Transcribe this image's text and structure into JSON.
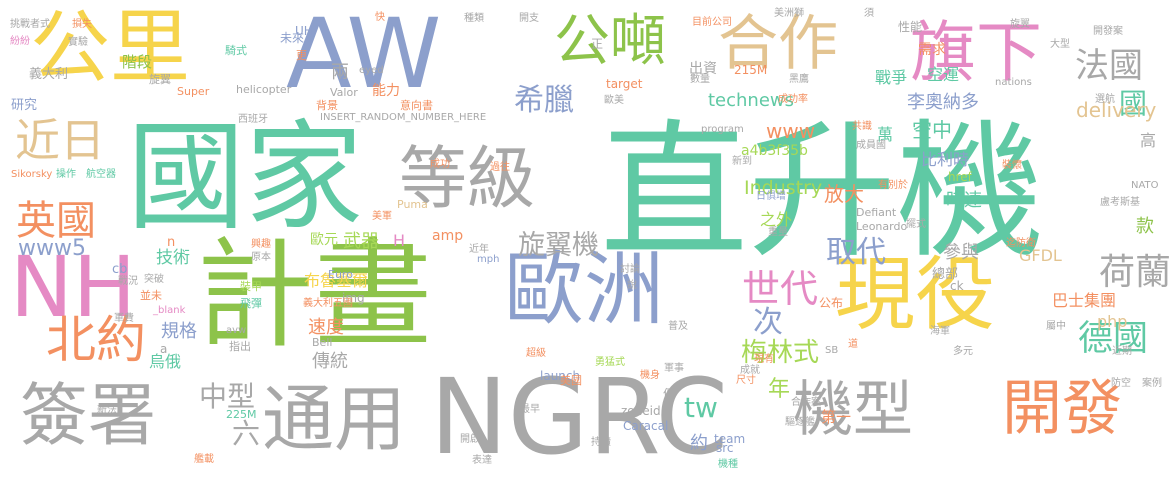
{
  "palette": {
    "gray": "#a8a8a8",
    "green": "#8dc34a",
    "yellow": "#f6d44b",
    "blue": "#8c9fcc",
    "teal": "#5fc9a4",
    "orange": "#f39061",
    "pink": "#e58ac4",
    "tan": "#e3c491",
    "lime": "#a6d856"
  },
  "words": [
    {
      "id": "w1",
      "text": "直升機",
      "color": "teal",
      "v": 0
    },
    {
      "id": "w2",
      "text": "國家",
      "color": "teal",
      "v": 0
    },
    {
      "id": "w3",
      "text": "計畫",
      "color": "green",
      "v": 0
    },
    {
      "id": "w4",
      "text": "NGRC",
      "color": "gray",
      "v": 0
    },
    {
      "id": "w5",
      "text": "AW",
      "color": "blue",
      "v": 0
    },
    {
      "id": "w6",
      "text": "公里",
      "color": "yellow",
      "v": 0
    },
    {
      "id": "w7",
      "text": "NH",
      "color": "pink",
      "v": 0
    },
    {
      "id": "w8",
      "text": "歐洲",
      "color": "blue",
      "v": 0
    },
    {
      "id": "w9",
      "text": "現役",
      "color": "yellow",
      "v": 0
    },
    {
      "id": "w10",
      "text": "等級",
      "color": "gray",
      "v": 0
    },
    {
      "id": "w11",
      "text": "通用",
      "color": "gray",
      "v": 0
    },
    {
      "id": "w12",
      "text": "簽署",
      "color": "gray",
      "v": 0
    },
    {
      "id": "w13",
      "text": "合作",
      "color": "tan",
      "v": 0
    },
    {
      "id": "w14",
      "text": "旗下",
      "color": "pink",
      "v": 0
    },
    {
      "id": "w15",
      "text": "公噸",
      "color": "green",
      "v": 0
    },
    {
      "id": "w16",
      "text": "機型",
      "color": "gray",
      "v": 0
    },
    {
      "id": "w17",
      "text": "開發",
      "color": "orange",
      "v": 0
    },
    {
      "id": "w18",
      "text": "北約",
      "color": "orange",
      "v": 0
    },
    {
      "id": "w19",
      "text": "英國",
      "color": "orange",
      "v": 0
    },
    {
      "id": "w20",
      "text": "近日",
      "color": "tan",
      "v": 0
    },
    {
      "id": "w21",
      "text": "世代",
      "color": "pink",
      "v": 0
    },
    {
      "id": "w22",
      "text": "荷蘭",
      "color": "gray",
      "v": 0
    },
    {
      "id": "w23",
      "text": "法國",
      "color": "gray",
      "v": 0
    },
    {
      "id": "w24",
      "text": "德國",
      "color": "teal",
      "v": 0
    },
    {
      "id": "w25",
      "text": "取代",
      "color": "blue",
      "v": 0
    },
    {
      "id": "w26",
      "text": "希臘",
      "color": "blue",
      "v": 0
    },
    {
      "id": "w27",
      "text": "旋翼機",
      "color": "gray",
      "v": 0
    },
    {
      "id": "w28",
      "text": "梅林式",
      "color": "lime",
      "v": 0
    },
    {
      "id": "w29",
      "text": "中型",
      "color": "gray",
      "v": 0
    },
    {
      "id": "w30",
      "text": "六",
      "color": "gray",
      "v": 0
    },
    {
      "id": "w31",
      "text": "次",
      "color": "blue",
      "v": 0
    },
    {
      "id": "w32",
      "text": "年",
      "color": "lime",
      "v": 0
    },
    {
      "id": "w33",
      "text": "www5",
      "color": "blue",
      "v": 0
    },
    {
      "id": "w34",
      "text": "tw",
      "color": "teal",
      "v": 0
    },
    {
      "id": "w35",
      "text": "國",
      "color": "teal",
      "v": 0
    },
    {
      "id": "w36",
      "text": "delivery",
      "color": "tan",
      "v": 0
    },
    {
      "id": "w37",
      "text": "www",
      "color": "orange",
      "v": 0
    },
    {
      "id": "w38",
      "text": "Industry",
      "color": "lime",
      "v": 0
    },
    {
      "id": "w39",
      "text": "technews",
      "color": "teal",
      "v": 0
    },
    {
      "id": "w40",
      "text": "李奧納多",
      "color": "blue",
      "v": 0
    },
    {
      "id": "w41",
      "text": "空中",
      "color": "teal",
      "v": 0
    },
    {
      "id": "w42",
      "text": "戰爭",
      "color": "teal",
      "v": 0
    },
    {
      "id": "w43",
      "text": "空運",
      "color": "teal",
      "v": 0
    },
    {
      "id": "w44",
      "text": "放大",
      "color": "orange",
      "v": 0
    },
    {
      "id": "w45",
      "text": "比利時",
      "color": "blue",
      "v": 0
    },
    {
      "id": "w46",
      "text": "時速",
      "color": "teal",
      "v": 0
    },
    {
      "id": "w47",
      "text": "參與",
      "color": "gray",
      "v": 0
    },
    {
      "id": "w48",
      "text": "布魯塞爾",
      "color": "yellow",
      "v": 0
    },
    {
      "id": "w49",
      "text": "武器",
      "color": "lime",
      "v": 0
    },
    {
      "id": "w50",
      "text": "技術",
      "color": "teal",
      "v": 0
    },
    {
      "id": "w51",
      "text": "規格",
      "color": "blue",
      "v": 0
    },
    {
      "id": "w52",
      "text": "速度",
      "color": "orange",
      "v": 0
    },
    {
      "id": "w53",
      "text": "傳統",
      "color": "gray",
      "v": 0
    },
    {
      "id": "w54",
      "text": "巴士集團",
      "color": "orange",
      "v": 0
    },
    {
      "id": "w55",
      "text": "之外",
      "color": "lime",
      "v": 0
    },
    {
      "id": "w56",
      "text": "a4b3f35b",
      "color": "lime",
      "v": 0
    },
    {
      "id": "w57",
      "text": "GFDL",
      "color": "tan",
      "v": 0
    },
    {
      "id": "w58",
      "text": "php",
      "color": "tan",
      "v": 0
    },
    {
      "id": "w59",
      "text": "出資",
      "color": "gray",
      "v": 0
    },
    {
      "id": "w60",
      "text": "需求",
      "color": "orange",
      "v": 0
    },
    {
      "id": "w61",
      "text": "性能",
      "color": "gray",
      "v": 0
    },
    {
      "id": "w62",
      "text": "歐元",
      "color": "lime",
      "v": 0
    },
    {
      "id": "w63",
      "text": "H",
      "color": "pink",
      "v": 0
    },
    {
      "id": "w64",
      "text": "amp",
      "color": "orange",
      "v": 0
    },
    {
      "id": "w65",
      "text": "能力",
      "color": "orange",
      "v": 0
    },
    {
      "id": "w66",
      "text": "義大利",
      "color": "gray",
      "v": 0
    },
    {
      "id": "w67",
      "text": "研究",
      "color": "blue",
      "v": 0
    },
    {
      "id": "w68",
      "text": "階段",
      "color": "green",
      "v": 0
    },
    {
      "id": "w69",
      "text": "兩",
      "color": "gray",
      "v": 0
    },
    {
      "id": "w70",
      "text": "烏俄",
      "color": "teal",
      "v": 0
    },
    {
      "id": "w71",
      "text": "第一",
      "color": "orange",
      "v": 0
    },
    {
      "id": "w72",
      "text": "約",
      "color": "blue",
      "v": 0
    },
    {
      "id": "w73",
      "text": "萬",
      "color": "teal",
      "v": 0
    },
    {
      "id": "w74",
      "text": "總部",
      "color": "gray",
      "v": 0
    },
    {
      "id": "w75",
      "text": "款",
      "color": "green",
      "v": 0
    },
    {
      "id": "w76",
      "text": "高",
      "color": "gray",
      "v": 0
    },
    {
      "id": "w77",
      "text": "公布",
      "color": "orange",
      "v": 0
    },
    {
      "id": "w78",
      "text": "Super",
      "color": "orange",
      "v": 0
    },
    {
      "id": "w79",
      "text": "helicopter",
      "color": "gray",
      "v": 0
    },
    {
      "id": "w80",
      "text": "Valor",
      "color": "gray",
      "v": 0
    },
    {
      "id": "w81",
      "text": "target",
      "color": "orange",
      "v": 0
    },
    {
      "id": "w82",
      "text": "Euro",
      "color": "blue",
      "v": 0
    },
    {
      "id": "w83",
      "text": "cb",
      "color": "blue",
      "v": 0
    },
    {
      "id": "w84",
      "text": "href",
      "color": "lime",
      "v": 0
    },
    {
      "id": "w85",
      "text": "ck",
      "color": "gray",
      "v": 0
    },
    {
      "id": "w86",
      "text": "img",
      "color": "gray",
      "v": 0
    },
    {
      "id": "w87",
      "text": "launch",
      "color": "blue",
      "v": 0
    },
    {
      "id": "w88",
      "text": "zoneid",
      "color": "gray",
      "v": 0
    },
    {
      "id": "w89",
      "text": "team",
      "color": "blue",
      "v": 0
    },
    {
      "id": "w90",
      "text": "Caracal",
      "color": "blue",
      "v": 0
    },
    {
      "id": "w91",
      "text": "src",
      "color": "blue",
      "v": 0
    },
    {
      "id": "w92",
      "text": "Bell",
      "color": "gray",
      "v": 0
    },
    {
      "id": "w93",
      "text": "Puma",
      "color": "tan",
      "v": 0
    },
    {
      "id": "w94",
      "text": "Leonardo",
      "color": "gray",
      "v": 0
    },
    {
      "id": "w95",
      "text": "Defiant",
      "color": "gray",
      "v": 0
    },
    {
      "id": "w96",
      "text": "Sikorsky",
      "color": "orange",
      "v": 0
    },
    {
      "id": "w97",
      "text": "NATO",
      "color": "gray",
      "v": 0
    },
    {
      "id": "w98",
      "text": "program",
      "color": "gray",
      "v": 0
    },
    {
      "id": "w99",
      "text": "nations",
      "color": "gray",
      "v": 0
    },
    {
      "id": "w100",
      "text": "215M",
      "color": "orange",
      "v": 0
    },
    {
      "id": "w101",
      "text": "225M",
      "color": "teal",
      "v": 0
    },
    {
      "id": "w102",
      "text": "INSERT_RANDOM_NUMBER_HERE",
      "color": "gray",
      "v": 0
    },
    {
      "id": "w103",
      "text": "_blank",
      "color": "pink",
      "v": 0
    },
    {
      "id": "w104",
      "text": "eyed",
      "color": "gray",
      "v": 0
    },
    {
      "id": "w105",
      "text": "UH",
      "color": "blue",
      "v": 0
    },
    {
      "id": "w106",
      "text": "SB",
      "color": "gray",
      "v": 0
    },
    {
      "id": "w107",
      "text": "mph",
      "color": "blue",
      "v": 0
    },
    {
      "id": "w108",
      "text": "avw",
      "color": "gray",
      "v": 0
    },
    {
      "id": "w109",
      "text": "未來",
      "color": "blue",
      "v": 0
    },
    {
      "id": "w110",
      "text": "更",
      "color": "orange",
      "v": 0
    },
    {
      "id": "w111",
      "text": "背景",
      "color": "orange",
      "v": 0
    },
    {
      "id": "w112",
      "text": "意向書",
      "color": "orange",
      "v": 0
    },
    {
      "id": "w113",
      "text": "西班牙",
      "color": "gray",
      "v": 0
    },
    {
      "id": "w114",
      "text": "美國",
      "color": "orange",
      "v": 0
    },
    {
      "id": "w115",
      "text": "航空器",
      "color": "teal",
      "v": 0
    },
    {
      "id": "w116",
      "text": "操作",
      "color": "teal",
      "v": 0
    },
    {
      "id": "w117",
      "text": "實驗",
      "color": "gray",
      "v": 0
    },
    {
      "id": "w118",
      "text": "紛紛",
      "color": "pink",
      "v": 0
    },
    {
      "id": "w119",
      "text": "挑戰者式",
      "color": "gray",
      "v": 0
    },
    {
      "id": "w120",
      "text": "損失",
      "color": "orange",
      "v": 0
    },
    {
      "id": "w121",
      "text": "旋翼",
      "color": "gray",
      "v": 0
    },
    {
      "id": "w122",
      "text": "騎式",
      "color": "teal",
      "v": 0
    },
    {
      "id": "w123",
      "text": "目前公司",
      "color": "orange",
      "v": 0
    },
    {
      "id": "w124",
      "text": "美洲獅",
      "color": "gray",
      "v": 0
    },
    {
      "id": "w125",
      "text": "開發案",
      "color": "gray",
      "v": 0
    },
    {
      "id": "w126",
      "text": "大型",
      "color": "gray",
      "v": 0
    },
    {
      "id": "w127",
      "text": "黑鷹",
      "color": "gray",
      "v": 0
    },
    {
      "id": "w128",
      "text": "成功率",
      "color": "orange",
      "v": 0
    },
    {
      "id": "w129",
      "text": "數量",
      "color": "gray",
      "v": 0
    },
    {
      "id": "w130",
      "text": "歐美",
      "color": "gray",
      "v": 0
    },
    {
      "id": "w131",
      "text": "共識",
      "color": "orange",
      "v": 0
    },
    {
      "id": "w132",
      "text": "成員國",
      "color": "gray",
      "v": 0
    },
    {
      "id": "w133",
      "text": "新到",
      "color": "gray",
      "v": 0
    },
    {
      "id": "w134",
      "text": "裝懷",
      "color": "orange",
      "v": 0
    },
    {
      "id": "w135",
      "text": "擺式",
      "color": "gray",
      "v": 0
    },
    {
      "id": "w136",
      "text": "有別於",
      "color": "orange",
      "v": 0
    },
    {
      "id": "w137",
      "text": "盧考斯基",
      "color": "gray",
      "v": 0
    },
    {
      "id": "w138",
      "text": "日俱增",
      "color": "blue",
      "v": 0
    },
    {
      "id": "w139",
      "text": "重量",
      "color": "gray",
      "v": 0
    },
    {
      "id": "w140",
      "text": "迄防衛",
      "color": "orange",
      "v": 0
    },
    {
      "id": "w141",
      "text": "義大利五國",
      "color": "orange",
      "v": 0
    },
    {
      "id": "w142",
      "text": "飛彈",
      "color": "teal",
      "v": 0
    },
    {
      "id": "w143",
      "text": "裝甲",
      "color": "lime",
      "v": 0
    },
    {
      "id": "w144",
      "text": "並未",
      "color": "orange",
      "v": 0
    },
    {
      "id": "w145",
      "text": "突破",
      "color": "gray",
      "v": 0
    },
    {
      "id": "w146",
      "text": "戰況",
      "color": "gray",
      "v": 0
    },
    {
      "id": "w147",
      "text": "軍費",
      "color": "gray",
      "v": 0
    },
    {
      "id": "w148",
      "text": "指出",
      "color": "gray",
      "v": 0
    },
    {
      "id": "w149",
      "text": "新法",
      "color": "gray",
      "v": 0
    },
    {
      "id": "w150",
      "text": "最早",
      "color": "gray",
      "v": 0
    },
    {
      "id": "w151",
      "text": "艦載",
      "color": "orange",
      "v": 0
    },
    {
      "id": "w152",
      "text": "開啟",
      "color": "gray",
      "v": 0
    },
    {
      "id": "w153",
      "text": "表達",
      "color": "gray",
      "v": 0
    },
    {
      "id": "w154",
      "text": "機種",
      "color": "teal",
      "v": 0
    },
    {
      "id": "w155",
      "text": "持續",
      "color": "gray",
      "v": 0
    },
    {
      "id": "w156",
      "text": "驅逐艦",
      "color": "gray",
      "v": 0
    },
    {
      "id": "w157",
      "text": "合作案",
      "color": "gray",
      "v": 0
    },
    {
      "id": "w158",
      "text": "防空",
      "color": "gray",
      "v": 0
    },
    {
      "id": "w159",
      "text": "案例",
      "color": "gray",
      "v": 0
    },
    {
      "id": "w160",
      "text": "近期",
      "color": "gray",
      "v": 0
    },
    {
      "id": "w161",
      "text": "多元",
      "color": "gray",
      "v": 0
    },
    {
      "id": "w162",
      "text": "尺寸",
      "color": "orange",
      "v": 0
    },
    {
      "id": "w163",
      "text": "成就",
      "color": "gray",
      "v": 0
    },
    {
      "id": "w164",
      "text": "普及",
      "color": "gray",
      "v": 0
    },
    {
      "id": "w165",
      "text": "討論",
      "color": "gray",
      "v": 0
    },
    {
      "id": "w166",
      "text": "海軍",
      "color": "gray",
      "v": 0
    },
    {
      "id": "w167",
      "text": "屬中",
      "color": "gray",
      "v": 0
    },
    {
      "id": "w168",
      "text": "過往",
      "color": "orange",
      "v": 0
    },
    {
      "id": "w169",
      "text": "成功",
      "color": "orange",
      "v": 0
    },
    {
      "id": "w170",
      "text": "原本",
      "color": "gray",
      "v": 0
    },
    {
      "id": "w171",
      "text": "興趣",
      "color": "orange",
      "v": 0
    },
    {
      "id": "w172",
      "text": "近年",
      "color": "gray",
      "v": 0
    },
    {
      "id": "w173",
      "text": "勇猛式",
      "color": "lime",
      "v": 0
    },
    {
      "id": "w174",
      "text": "超級",
      "color": "orange",
      "v": 0
    },
    {
      "id": "w175",
      "text": "軍事",
      "color": "gray",
      "v": 0
    },
    {
      "id": "w176",
      "text": "機身",
      "color": "orange",
      "v": 0
    },
    {
      "id": "w177",
      "text": "現有",
      "color": "orange",
      "v": 0
    },
    {
      "id": "w178",
      "text": "種類",
      "color": "gray",
      "v": 0
    },
    {
      "id": "w179",
      "text": "旋翼",
      "color": "gray",
      "v": 0
    },
    {
      "id": "w180",
      "text": "開支",
      "color": "gray",
      "v": 0
    },
    {
      "id": "w181",
      "text": "正",
      "color": "gray",
      "v": 0
    },
    {
      "id": "w182",
      "text": "快",
      "color": "orange",
      "v": 0
    },
    {
      "id": "w183",
      "text": "須",
      "color": "gray",
      "v": 0
    },
    {
      "id": "w184",
      "text": "選航",
      "color": "gray",
      "v": 0
    },
    {
      "id": "w185",
      "text": "美軍",
      "color": "orange",
      "v": 0
    },
    {
      "id": "w186",
      "text": "道",
      "color": "orange",
      "v": 0
    },
    {
      "id": "w187",
      "text": "便",
      "color": "gray",
      "v": 0
    },
    {
      "id": "w188",
      "text": "說",
      "color": "gray",
      "v": 0
    },
    {
      "id": "w189",
      "text": "n",
      "color": "orange",
      "v": 0
    },
    {
      "id": "w190",
      "text": "a",
      "color": "gray",
      "v": 0
    }
  ]
}
